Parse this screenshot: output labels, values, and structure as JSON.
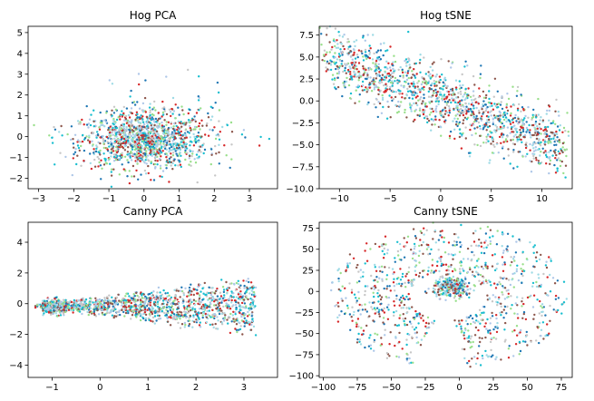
{
  "figure": {
    "colors": [
      "#1f77b4",
      "#17becf",
      "#98df8a",
      "#8c564b",
      "#c7c7c7",
      "#d62728",
      "#9edae5",
      "#aec7e8"
    ]
  },
  "chart_data": [
    {
      "type": "scatter",
      "title": "Hog PCA",
      "xlabel": "",
      "ylabel": "",
      "xlim": [
        -3.3,
        3.8
      ],
      "ylim": [
        -2.5,
        5.3
      ],
      "xticks": [
        -3,
        -2,
        -1,
        0,
        1,
        2,
        3
      ],
      "yticks": [
        -2,
        -1,
        0,
        1,
        2,
        3,
        4,
        5
      ],
      "grid": false,
      "distribution": "dense cloud centered near (0,-0.2), spread x -3..3.5, y -2..4.8"
    },
    {
      "type": "scatter",
      "title": "Hog tSNE",
      "xlabel": "",
      "ylabel": "",
      "xlim": [
        -12,
        13
      ],
      "ylim": [
        -10,
        8.5
      ],
      "xticks": [
        -10,
        -5,
        0,
        5,
        10
      ],
      "yticks": [
        -10.0,
        -7.5,
        -5.0,
        -2.5,
        0.0,
        2.5,
        5.0,
        7.5
      ],
      "grid": false,
      "distribution": "diagonal band from (-11,5) to (12,-5)"
    },
    {
      "type": "scatter",
      "title": "Canny PCA",
      "xlabel": "",
      "ylabel": "",
      "xlim": [
        -1.5,
        3.7
      ],
      "ylim": [
        -4.8,
        5.3
      ],
      "xticks": [
        -1,
        0,
        1,
        2,
        3
      ],
      "yticks": [
        -4,
        -2,
        0,
        2,
        4
      ],
      "grid": false,
      "distribution": "wedge from (-1.3,-0.2) opening to the right, up to x 3.5"
    },
    {
      "type": "scatter",
      "title": "Canny tSNE",
      "xlabel": "",
      "ylabel": "",
      "xlim": [
        -103,
        83
      ],
      "ylim": [
        -102,
        82
      ],
      "xticks": [
        -100,
        -75,
        -50,
        -25,
        0,
        25,
        50,
        75
      ],
      "yticks": [
        -100,
        -75,
        -50,
        -25,
        0,
        25,
        50,
        75
      ],
      "grid": false,
      "distribution": "dense cluster near (0,0) inside a ring of points, radius 30..90"
    }
  ]
}
